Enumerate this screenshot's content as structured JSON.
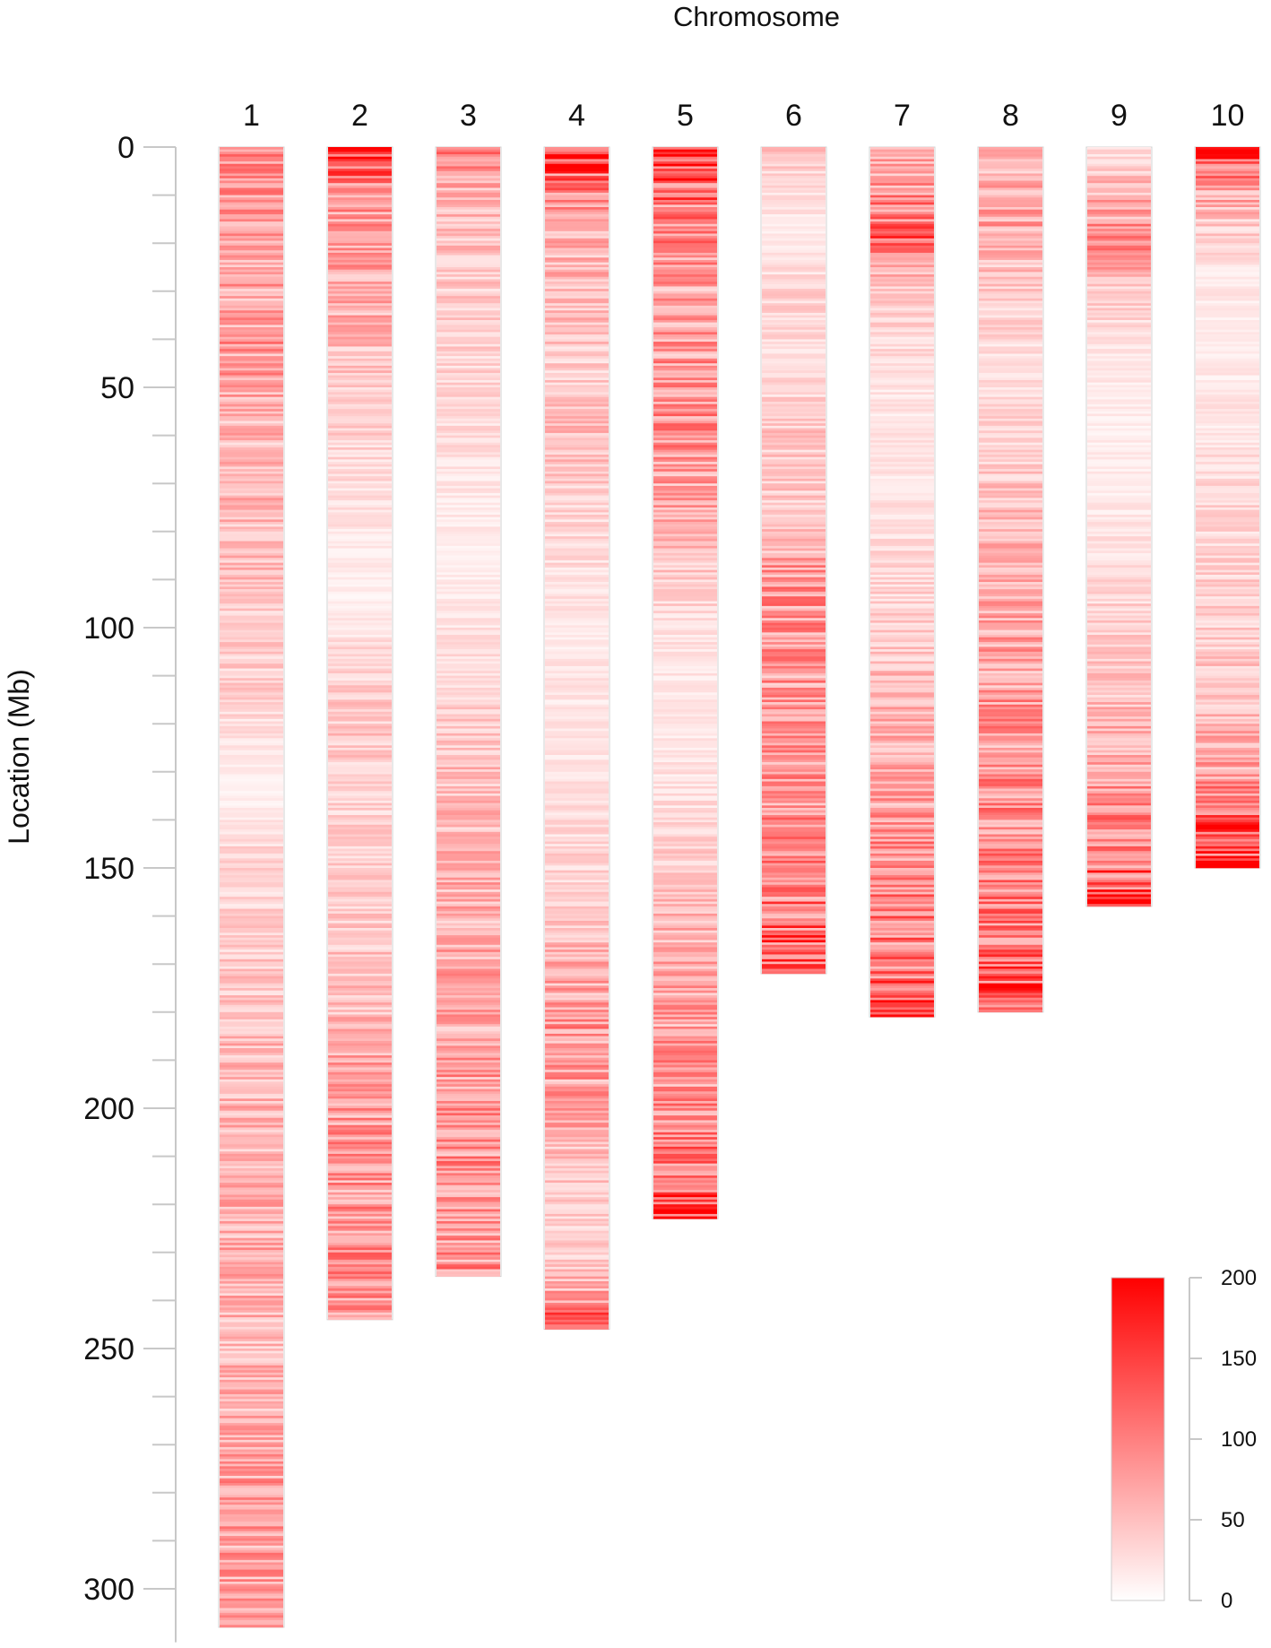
{
  "chart_data": {
    "type": "heatmap",
    "title": "Chromosome",
    "ylabel": "Location (Mb)",
    "ylim": [
      0,
      310
    ],
    "yticks": [
      0,
      50,
      100,
      150,
      200,
      250,
      300
    ],
    "legend": {
      "position": "bottom-right",
      "min": 0,
      "max": 200,
      "ticks": [
        0,
        50,
        100,
        150,
        200
      ],
      "color_low": "#ffffff",
      "color_high": "#ff0000"
    },
    "chromosomes": [
      {
        "name": "1",
        "length": 308,
        "profile": [
          [
            0,
            75
          ],
          [
            5,
            90
          ],
          [
            20,
            65
          ],
          [
            40,
            80
          ],
          [
            60,
            55
          ],
          [
            80,
            55
          ],
          [
            100,
            40
          ],
          [
            115,
            35
          ],
          [
            125,
            18
          ],
          [
            135,
            12
          ],
          [
            145,
            30
          ],
          [
            160,
            35
          ],
          [
            175,
            45
          ],
          [
            190,
            60
          ],
          [
            210,
            55
          ],
          [
            230,
            65
          ],
          [
            250,
            55
          ],
          [
            270,
            70
          ],
          [
            285,
            75
          ],
          [
            300,
            70
          ],
          [
            308,
            65
          ]
        ]
      },
      {
        "name": "2",
        "length": 244,
        "profile": [
          [
            0,
            155
          ],
          [
            6,
            110
          ],
          [
            12,
            80
          ],
          [
            30,
            65
          ],
          [
            40,
            55
          ],
          [
            55,
            40
          ],
          [
            70,
            28
          ],
          [
            85,
            18
          ],
          [
            95,
            12
          ],
          [
            105,
            30
          ],
          [
            120,
            45
          ],
          [
            140,
            35
          ],
          [
            160,
            40
          ],
          [
            180,
            55
          ],
          [
            195,
            75
          ],
          [
            210,
            85
          ],
          [
            225,
            80
          ],
          [
            235,
            90
          ],
          [
            244,
            80
          ]
        ]
      },
      {
        "name": "3",
        "length": 235,
        "profile": [
          [
            0,
            90
          ],
          [
            10,
            55
          ],
          [
            25,
            45
          ],
          [
            45,
            35
          ],
          [
            60,
            28
          ],
          [
            75,
            18
          ],
          [
            90,
            15
          ],
          [
            105,
            25
          ],
          [
            120,
            40
          ],
          [
            135,
            55
          ],
          [
            150,
            60
          ],
          [
            170,
            65
          ],
          [
            190,
            75
          ],
          [
            210,
            85
          ],
          [
            225,
            80
          ],
          [
            235,
            90
          ]
        ]
      },
      {
        "name": "4",
        "length": 246,
        "profile": [
          [
            0,
            160
          ],
          [
            3,
            200
          ],
          [
            6,
            110
          ],
          [
            15,
            60
          ],
          [
            30,
            55
          ],
          [
            45,
            40
          ],
          [
            60,
            50
          ],
          [
            75,
            35
          ],
          [
            90,
            25
          ],
          [
            105,
            20
          ],
          [
            120,
            20
          ],
          [
            135,
            25
          ],
          [
            150,
            35
          ],
          [
            165,
            50
          ],
          [
            180,
            80
          ],
          [
            200,
            75
          ],
          [
            215,
            45
          ],
          [
            230,
            35
          ],
          [
            240,
            75
          ],
          [
            246,
            150
          ]
        ]
      },
      {
        "name": "5",
        "length": 223,
        "profile": [
          [
            0,
            190
          ],
          [
            8,
            130
          ],
          [
            15,
            95
          ],
          [
            30,
            70
          ],
          [
            45,
            80
          ],
          [
            60,
            85
          ],
          [
            75,
            65
          ],
          [
            90,
            40
          ],
          [
            105,
            20
          ],
          [
            120,
            18
          ],
          [
            135,
            25
          ],
          [
            150,
            40
          ],
          [
            165,
            60
          ],
          [
            185,
            75
          ],
          [
            200,
            85
          ],
          [
            212,
            110
          ],
          [
            223,
            160
          ]
        ]
      },
      {
        "name": "6",
        "length": 172,
        "profile": [
          [
            0,
            45
          ],
          [
            10,
            25
          ],
          [
            20,
            15
          ],
          [
            30,
            35
          ],
          [
            45,
            25
          ],
          [
            60,
            45
          ],
          [
            75,
            40
          ],
          [
            90,
            85
          ],
          [
            105,
            80
          ],
          [
            120,
            75
          ],
          [
            135,
            80
          ],
          [
            150,
            95
          ],
          [
            160,
            110
          ],
          [
            170,
            150
          ],
          [
            172,
            90
          ]
        ]
      },
      {
        "name": "7",
        "length": 181,
        "profile": [
          [
            0,
            75
          ],
          [
            10,
            85
          ],
          [
            18,
            120
          ],
          [
            25,
            55
          ],
          [
            40,
            30
          ],
          [
            55,
            20
          ],
          [
            70,
            20
          ],
          [
            85,
            30
          ],
          [
            100,
            40
          ],
          [
            115,
            55
          ],
          [
            130,
            65
          ],
          [
            145,
            85
          ],
          [
            160,
            100
          ],
          [
            170,
            110
          ],
          [
            181,
            135
          ]
        ]
      },
      {
        "name": "8",
        "length": 180,
        "profile": [
          [
            0,
            55
          ],
          [
            15,
            70
          ],
          [
            30,
            40
          ],
          [
            45,
            25
          ],
          [
            60,
            35
          ],
          [
            75,
            50
          ],
          [
            90,
            60
          ],
          [
            105,
            70
          ],
          [
            120,
            80
          ],
          [
            135,
            85
          ],
          [
            150,
            90
          ],
          [
            165,
            110
          ],
          [
            175,
            140
          ],
          [
            180,
            100
          ]
        ]
      },
      {
        "name": "9",
        "length": 158,
        "profile": [
          [
            0,
            25
          ],
          [
            10,
            60
          ],
          [
            20,
            90
          ],
          [
            28,
            50
          ],
          [
            40,
            20
          ],
          [
            55,
            15
          ],
          [
            70,
            15
          ],
          [
            85,
            25
          ],
          [
            100,
            40
          ],
          [
            115,
            55
          ],
          [
            130,
            70
          ],
          [
            140,
            95
          ],
          [
            150,
            120
          ],
          [
            158,
            170
          ]
        ]
      },
      {
        "name": "10",
        "length": 150,
        "profile": [
          [
            0,
            165
          ],
          [
            5,
            95
          ],
          [
            15,
            45
          ],
          [
            25,
            20
          ],
          [
            40,
            15
          ],
          [
            55,
            20
          ],
          [
            70,
            30
          ],
          [
            85,
            35
          ],
          [
            100,
            40
          ],
          [
            115,
            45
          ],
          [
            125,
            65
          ],
          [
            135,
            95
          ],
          [
            145,
            150
          ],
          [
            150,
            180
          ]
        ]
      }
    ]
  }
}
